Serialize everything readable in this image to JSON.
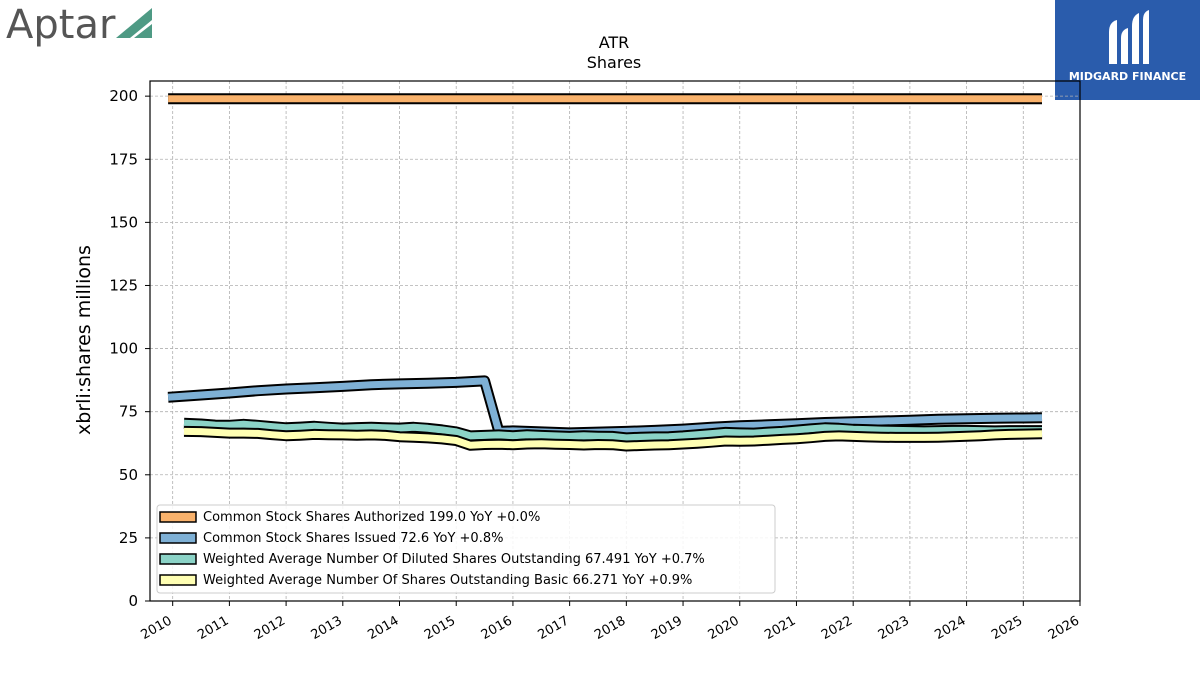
{
  "branding": {
    "left_logo_text": "Aptar",
    "left_logo_color": "#555555",
    "left_logo_accent": "#4e9a84",
    "right_logo_text": "MIDGARD FINANCE",
    "right_logo_bg": "#2a5cac"
  },
  "chart_data": {
    "type": "line",
    "title": "ATR",
    "subtitle": "Shares",
    "xlabel": "",
    "ylabel": "xbrli:shares millions",
    "xlim": [
      2009.6,
      2026.0
    ],
    "ylim": [
      0,
      206
    ],
    "x_ticks": [
      2010,
      2011,
      2012,
      2013,
      2014,
      2015,
      2016,
      2017,
      2018,
      2019,
      2020,
      2021,
      2022,
      2023,
      2024,
      2025,
      2026
    ],
    "x_tick_labels": [
      "2010",
      "2011",
      "2012",
      "2013",
      "2014",
      "2015",
      "2016",
      "2017",
      "2018",
      "2019",
      "2020",
      "2021",
      "2022",
      "2023",
      "2024",
      "2025",
      "2026"
    ],
    "y_ticks": [
      0,
      25,
      50,
      75,
      100,
      125,
      150,
      175,
      200
    ],
    "y_tick_labels": [
      "0",
      "25",
      "50",
      "75",
      "100",
      "125",
      "150",
      "175",
      "200"
    ],
    "grid": true,
    "legend_position": "lower-left",
    "series": [
      {
        "name": "Common Stock Shares Authorized  199.0 YoY +0.0%",
        "color": "#f9b26c",
        "x": [
          2009.92,
          2025.33
        ],
        "values": [
          199.0,
          199.0
        ]
      },
      {
        "name": "Common Stock Shares Issued  72.6 YoY +0.8%",
        "color": "#7eb0d5",
        "x": [
          2009.92,
          2010.5,
          2011.0,
          2011.5,
          2012.0,
          2012.5,
          2013.0,
          2013.5,
          2014.0,
          2014.5,
          2015.0,
          2015.25,
          2015.5,
          2015.75,
          2016.0,
          2016.5,
          2017.0,
          2017.5,
          2018.0,
          2018.5,
          2019.0,
          2019.5,
          2020.0,
          2020.5,
          2021.0,
          2021.5,
          2022.0,
          2022.5,
          2023.0,
          2023.5,
          2024.0,
          2024.5,
          2025.0,
          2025.33
        ],
        "values": [
          80.7,
          81.6,
          82.4,
          83.3,
          84.0,
          84.5,
          85.0,
          85.7,
          86.0,
          86.3,
          86.6,
          86.9,
          87.2,
          67.2,
          67.4,
          67.0,
          66.6,
          66.9,
          67.2,
          67.6,
          68.1,
          68.8,
          69.4,
          69.8,
          70.2,
          70.7,
          71.0,
          71.3,
          71.6,
          72.0,
          72.2,
          72.4,
          72.5,
          72.6
        ]
      },
      {
        "name": "Weighted Average Number Of Diluted Shares Outstanding  67.491 YoY +0.7%",
        "color": "#8bd3c7",
        "x": [
          2010.2,
          2010.5,
          2010.75,
          2011.0,
          2011.25,
          2011.5,
          2011.75,
          2012.0,
          2012.25,
          2012.5,
          2012.75,
          2013.0,
          2013.25,
          2013.5,
          2013.75,
          2014.0,
          2014.25,
          2014.5,
          2014.75,
          2015.0,
          2015.25,
          2015.5,
          2015.75,
          2016.0,
          2016.25,
          2016.5,
          2016.75,
          2017.0,
          2017.25,
          2017.5,
          2017.75,
          2018.0,
          2018.25,
          2018.5,
          2018.75,
          2019.0,
          2019.25,
          2019.5,
          2019.75,
          2020.0,
          2020.25,
          2020.5,
          2020.75,
          2021.0,
          2021.25,
          2021.5,
          2021.75,
          2022.0,
          2022.25,
          2022.5,
          2022.75,
          2023.0,
          2023.25,
          2023.5,
          2023.75,
          2024.0,
          2024.25,
          2024.5,
          2024.75,
          2025.0,
          2025.33
        ],
        "values": [
          70.4,
          70.1,
          69.7,
          69.6,
          70.0,
          69.6,
          69.1,
          68.6,
          68.9,
          69.2,
          68.8,
          68.5,
          68.7,
          68.8,
          68.6,
          68.5,
          68.8,
          68.4,
          67.8,
          67.0,
          65.4,
          65.6,
          65.8,
          65.5,
          65.9,
          65.6,
          65.4,
          65.2,
          65.5,
          65.3,
          65.2,
          64.6,
          64.9,
          65.0,
          65.1,
          65.4,
          65.9,
          66.3,
          66.8,
          66.6,
          66.5,
          66.9,
          67.2,
          67.7,
          68.2,
          68.6,
          68.4,
          68.0,
          67.9,
          67.7,
          67.6,
          67.5,
          67.4,
          67.5,
          67.6,
          67.6,
          67.5,
          67.4,
          67.5,
          67.5,
          67.491
        ]
      },
      {
        "name": "Weighted Average Number Of Shares Outstanding Basic  66.271 YoY +0.9%",
        "color": "#ffffb3",
        "x": [
          2010.2,
          2010.5,
          2010.75,
          2011.0,
          2011.25,
          2011.5,
          2011.75,
          2012.0,
          2012.25,
          2012.5,
          2012.75,
          2013.0,
          2013.25,
          2013.5,
          2013.75,
          2014.0,
          2014.25,
          2014.5,
          2014.75,
          2015.0,
          2015.25,
          2015.5,
          2015.75,
          2016.0,
          2016.25,
          2016.5,
          2016.75,
          2017.0,
          2017.25,
          2017.5,
          2017.75,
          2018.0,
          2018.25,
          2018.5,
          2018.75,
          2019.0,
          2019.25,
          2019.5,
          2019.75,
          2020.0,
          2020.25,
          2020.5,
          2020.75,
          2021.0,
          2021.25,
          2021.5,
          2021.75,
          2022.0,
          2022.25,
          2022.5,
          2022.75,
          2023.0,
          2023.25,
          2023.5,
          2023.75,
          2024.0,
          2024.25,
          2024.5,
          2024.75,
          2025.0,
          2025.33
        ],
        "values": [
          67.2,
          67.1,
          66.8,
          66.5,
          66.5,
          66.4,
          65.9,
          65.5,
          65.7,
          66.0,
          65.9,
          65.8,
          65.7,
          65.8,
          65.6,
          65.1,
          64.9,
          64.6,
          64.2,
          63.6,
          61.7,
          62.0,
          62.1,
          61.9,
          62.2,
          62.3,
          62.1,
          62.0,
          61.8,
          62.0,
          61.9,
          61.4,
          61.6,
          61.8,
          61.9,
          62.2,
          62.5,
          62.9,
          63.4,
          63.3,
          63.4,
          63.7,
          64.0,
          64.3,
          64.7,
          65.2,
          65.4,
          65.2,
          65.0,
          64.9,
          64.8,
          64.8,
          64.8,
          64.9,
          65.1,
          65.3,
          65.5,
          65.8,
          66.0,
          66.1,
          66.271
        ]
      }
    ]
  }
}
